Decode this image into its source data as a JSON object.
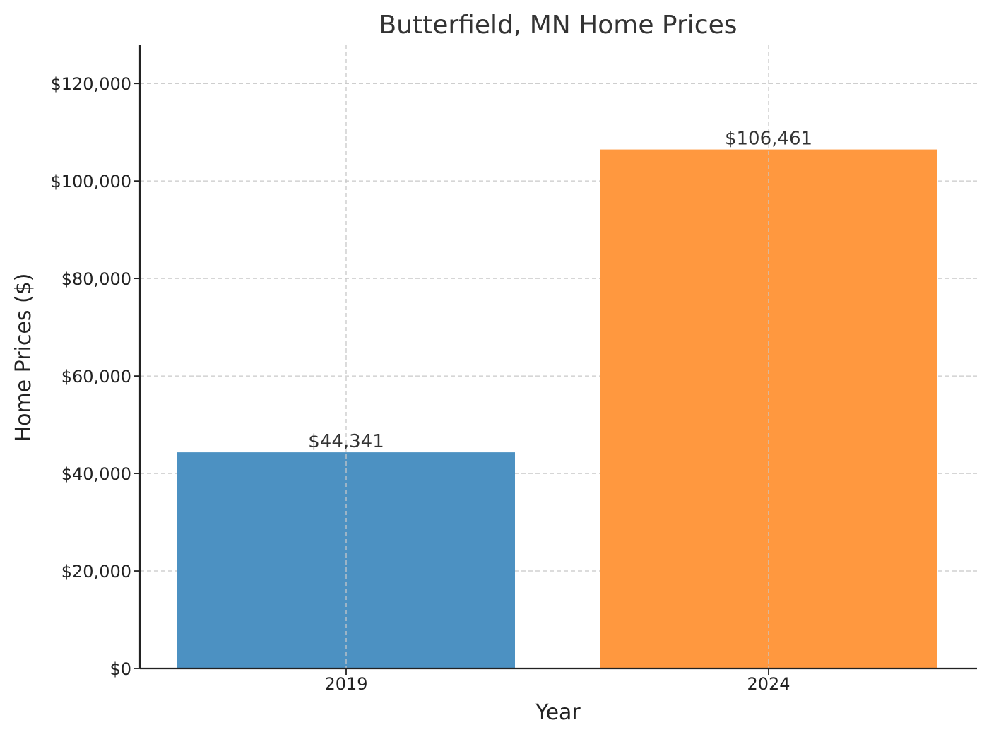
{
  "chart_data": {
    "type": "bar",
    "title": "Butterfield, MN Home Prices",
    "xlabel": "Year",
    "ylabel": "Home Prices ($)",
    "categories": [
      "2019",
      "2024"
    ],
    "values": [
      44341,
      106461
    ],
    "value_labels": [
      "$44,341",
      "$106,461"
    ],
    "colors": [
      "#4c91c2",
      "#ff983f"
    ],
    "ylim": [
      0,
      128000
    ],
    "yticks": [
      0,
      20000,
      40000,
      60000,
      80000,
      100000,
      120000
    ],
    "ytick_labels": [
      "$0",
      "$20,000",
      "$40,000",
      "$60,000",
      "$80,000",
      "$100,000",
      "$120,000"
    ],
    "grid": true,
    "legend": "none"
  }
}
